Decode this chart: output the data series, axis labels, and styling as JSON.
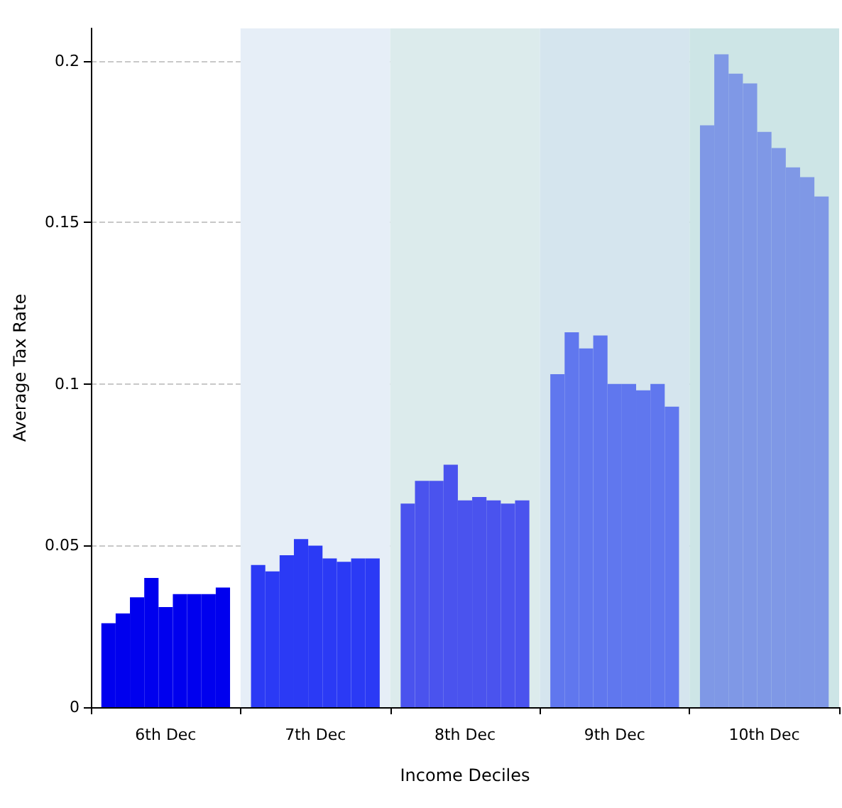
{
  "chart_data": {
    "type": "bar",
    "xlabel": "Income Deciles",
    "ylabel": "Average Tax Rate",
    "categories": [
      "6th Dec",
      "7th Dec",
      "8th Dec",
      "9th Dec",
      "10th Dec"
    ],
    "series": [
      {
        "values": [
          0.026,
          0.044,
          0.063,
          0.103,
          0.18
        ],
        "colors": [
          "#0000ee",
          "#2b3af5",
          "#4a53ee",
          "#6077ee",
          "#7f98e6"
        ]
      },
      {
        "values": [
          0.029,
          0.042,
          0.07,
          0.116,
          0.202
        ],
        "colors": [
          "#0000ee",
          "#2b3af5",
          "#4a53ee",
          "#6077ee",
          "#7f98e6"
        ]
      },
      {
        "values": [
          0.034,
          0.047,
          0.07,
          0.111,
          0.196
        ],
        "colors": [
          "#0000ee",
          "#2b3af5",
          "#4a53ee",
          "#6077ee",
          "#7f98e6"
        ]
      },
      {
        "values": [
          0.04,
          0.052,
          0.075,
          0.115,
          0.193
        ],
        "colors": [
          "#0000ee",
          "#2b3af5",
          "#4a53ee",
          "#6077ee",
          "#7f98e6"
        ]
      },
      {
        "values": [
          0.031,
          0.05,
          0.064,
          0.1,
          0.178
        ],
        "colors": [
          "#0000ee",
          "#2b3af5",
          "#4a53ee",
          "#6077ee",
          "#7f98e6"
        ]
      },
      {
        "values": [
          0.035,
          0.046,
          0.065,
          0.1,
          0.173
        ],
        "colors": [
          "#0000ee",
          "#2b3af5",
          "#4a53ee",
          "#6077ee",
          "#7f98e6"
        ]
      },
      {
        "values": [
          0.035,
          0.045,
          0.064,
          0.098,
          0.167
        ],
        "colors": [
          "#0000ee",
          "#2b3af5",
          "#4a53ee",
          "#6077ee",
          "#7f98e6"
        ]
      },
      {
        "values": [
          0.035,
          0.046,
          0.063,
          0.1,
          0.164
        ],
        "colors": [
          "#0000ee",
          "#2b3af5",
          "#4a53ee",
          "#6077ee",
          "#7f98e6"
        ]
      },
      {
        "values": [
          0.037,
          0.046,
          0.064,
          0.093,
          0.158
        ],
        "colors": [
          "#0000ee",
          "#2b3af5",
          "#4a53ee",
          "#6077ee",
          "#7f98e6"
        ]
      }
    ],
    "bands": [
      {
        "axis": "x",
        "from": "7th Dec",
        "to": "7th Dec",
        "color": "#e6eef7"
      },
      {
        "axis": "x",
        "from": "8th Dec",
        "to": "8th Dec",
        "color": "#dcebec"
      },
      {
        "axis": "x",
        "from": "9th Dec",
        "to": "9th Dec",
        "color": "#d5e5ee"
      },
      {
        "axis": "x",
        "from": "10th Dec",
        "to": "10th Dec",
        "color": "#cde5e6"
      }
    ],
    "ylim": [
      0,
      0.21
    ],
    "yticks": [
      0,
      0.05,
      0.1,
      0.15,
      0.2
    ],
    "grid": "y"
  }
}
